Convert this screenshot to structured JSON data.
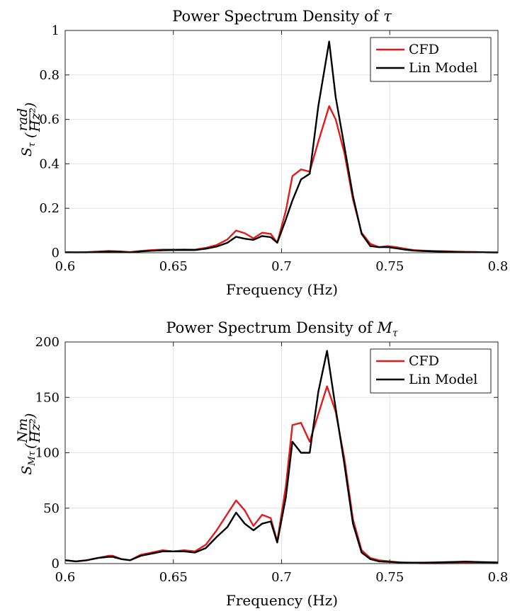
{
  "chart_data": [
    {
      "type": "line",
      "title_prefix": "Power Spectrum Density of ",
      "title_symbol": "τ",
      "title_symbol_sub": "",
      "xlabel": "Frequency (Hz)",
      "ylabel_main": "S",
      "ylabel_sub": "τ",
      "ylabel_unit_num": "rad",
      "ylabel_unit_den": "Hz²",
      "xlim": [
        0.6,
        0.8
      ],
      "ylim": [
        0,
        1
      ],
      "xticks": [
        0.6,
        0.65,
        0.7,
        0.75,
        0.8
      ],
      "xtick_labels": [
        "0.6",
        "0.65",
        "0.7",
        "0.75",
        "0.8"
      ],
      "yticks": [
        0,
        0.2,
        0.4,
        0.6,
        0.8,
        1
      ],
      "ytick_labels": [
        "0",
        "0.2",
        "0.4",
        "0.6",
        "0.8",
        "1"
      ],
      "grid": true,
      "legend_position": "top-right",
      "series": [
        {
          "name": "CFD",
          "color": "#e41a1c",
          "x": [
            0.6,
            0.605,
            0.61,
            0.615,
            0.62,
            0.625,
            0.63,
            0.635,
            0.64,
            0.645,
            0.65,
            0.655,
            0.66,
            0.665,
            0.67,
            0.675,
            0.679,
            0.683,
            0.687,
            0.691,
            0.695,
            0.698,
            0.702,
            0.705,
            0.709,
            0.713,
            0.717,
            0.722,
            0.725,
            0.729,
            0.733,
            0.737,
            0.741,
            0.745,
            0.749,
            0.753,
            0.757,
            0.761,
            0.765,
            0.77,
            0.775,
            0.78,
            0.785,
            0.79,
            0.795,
            0.8
          ],
          "y": [
            0.003,
            0.002,
            0.003,
            0.005,
            0.008,
            0.006,
            0.003,
            0.008,
            0.012,
            0.014,
            0.014,
            0.015,
            0.014,
            0.022,
            0.035,
            0.06,
            0.1,
            0.088,
            0.065,
            0.09,
            0.085,
            0.045,
            0.19,
            0.345,
            0.375,
            0.365,
            0.5,
            0.66,
            0.6,
            0.45,
            0.24,
            0.09,
            0.04,
            0.025,
            0.03,
            0.025,
            0.018,
            0.012,
            0.01,
            0.008,
            0.007,
            0.005,
            0.004,
            0.003,
            0.002,
            0.002
          ]
        },
        {
          "name": "Lin Model",
          "color": "#000000",
          "x": [
            0.6,
            0.605,
            0.61,
            0.615,
            0.62,
            0.625,
            0.63,
            0.635,
            0.64,
            0.645,
            0.65,
            0.655,
            0.66,
            0.665,
            0.67,
            0.675,
            0.679,
            0.683,
            0.687,
            0.691,
            0.695,
            0.698,
            0.702,
            0.705,
            0.709,
            0.713,
            0.717,
            0.722,
            0.725,
            0.729,
            0.733,
            0.737,
            0.741,
            0.745,
            0.749,
            0.753,
            0.757,
            0.761,
            0.765,
            0.77,
            0.775,
            0.78,
            0.785,
            0.79,
            0.795,
            0.8
          ],
          "y": [
            0.002,
            0.002,
            0.002,
            0.004,
            0.005,
            0.005,
            0.002,
            0.006,
            0.009,
            0.011,
            0.012,
            0.012,
            0.012,
            0.018,
            0.028,
            0.045,
            0.072,
            0.063,
            0.058,
            0.075,
            0.07,
            0.045,
            0.15,
            0.235,
            0.33,
            0.355,
            0.66,
            0.95,
            0.7,
            0.48,
            0.255,
            0.085,
            0.03,
            0.025,
            0.025,
            0.02,
            0.014,
            0.01,
            0.008,
            0.006,
            0.005,
            0.004,
            0.003,
            0.003,
            0.002,
            0.001
          ]
        }
      ]
    },
    {
      "type": "line",
      "title_prefix": "Power Spectrum Density of ",
      "title_symbol": "M",
      "title_symbol_sub": "τ",
      "xlabel": "Frequency (Hz)",
      "ylabel_main": "S",
      "ylabel_sub": "Mτ",
      "ylabel_unit_num": "Nm",
      "ylabel_unit_den": "Hz²",
      "xlim": [
        0.6,
        0.8
      ],
      "ylim": [
        0,
        200
      ],
      "xticks": [
        0.6,
        0.65,
        0.7,
        0.75,
        0.8
      ],
      "xtick_labels": [
        "0.6",
        "0.65",
        "0.7",
        "0.75",
        "0.8"
      ],
      "yticks": [
        0,
        50,
        100,
        150,
        200
      ],
      "ytick_labels": [
        "0",
        "50",
        "100",
        "150",
        "200"
      ],
      "grid": true,
      "legend_position": "top-right",
      "series": [
        {
          "name": "CFD",
          "color": "#e41a1c",
          "x": [
            0.6,
            0.605,
            0.61,
            0.615,
            0.62,
            0.622,
            0.626,
            0.63,
            0.635,
            0.64,
            0.645,
            0.65,
            0.655,
            0.66,
            0.665,
            0.67,
            0.675,
            0.679,
            0.683,
            0.687,
            0.691,
            0.695,
            0.698,
            0.702,
            0.705,
            0.709,
            0.713,
            0.717,
            0.721,
            0.725,
            0.729,
            0.733,
            0.737,
            0.741,
            0.745,
            0.75,
            0.755,
            0.76,
            0.765,
            0.77,
            0.775,
            0.78,
            0.785,
            0.79,
            0.795,
            0.8
          ],
          "y": [
            3,
            2,
            3,
            5,
            7,
            7,
            4,
            3,
            8,
            10,
            12,
            11,
            12,
            11,
            17,
            30,
            45,
            57,
            48,
            34,
            44,
            41,
            20,
            70,
            125,
            127,
            110,
            135,
            160,
            137,
            95,
            40,
            12,
            5,
            3,
            2,
            1,
            0.5,
            0.3,
            0.3,
            0.3,
            0.4,
            0.5,
            0.6,
            0.7,
            0.8
          ]
        },
        {
          "name": "Lin Model",
          "color": "#000000",
          "x": [
            0.6,
            0.605,
            0.61,
            0.615,
            0.62,
            0.622,
            0.626,
            0.63,
            0.635,
            0.64,
            0.645,
            0.65,
            0.655,
            0.66,
            0.665,
            0.67,
            0.675,
            0.679,
            0.683,
            0.687,
            0.691,
            0.695,
            0.698,
            0.702,
            0.705,
            0.709,
            0.713,
            0.717,
            0.721,
            0.725,
            0.729,
            0.733,
            0.737,
            0.741,
            0.745,
            0.75,
            0.755,
            0.76,
            0.765,
            0.77,
            0.775,
            0.78,
            0.785,
            0.79,
            0.795,
            0.8
          ],
          "y": [
            3,
            2,
            3,
            5,
            6,
            6,
            4,
            3,
            7,
            9,
            11,
            11,
            11,
            10,
            14,
            24,
            33,
            46,
            36,
            30,
            36,
            38,
            19,
            60,
            110,
            100,
            100,
            155,
            192,
            140,
            90,
            36,
            10,
            4,
            2,
            1.5,
            1,
            0.8,
            0.8,
            1,
            1.2,
            1.5,
            1.8,
            1.5,
            1.2,
            1
          ]
        }
      ]
    }
  ]
}
